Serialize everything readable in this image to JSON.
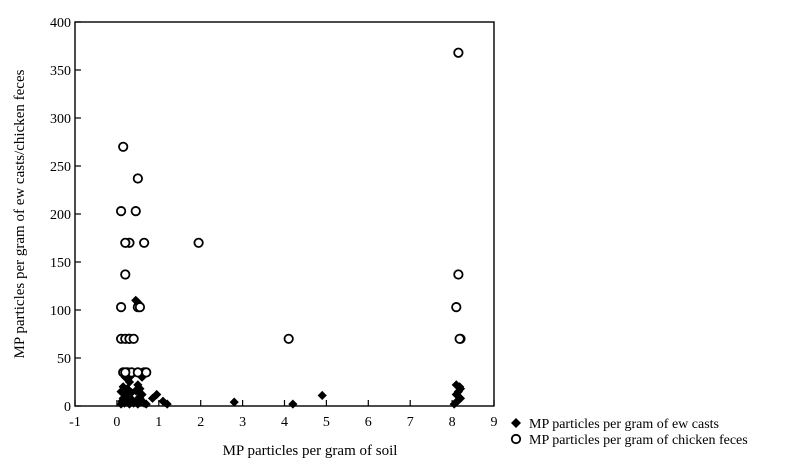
{
  "chart_data": {
    "type": "scatter",
    "title": "",
    "xlabel": "MP particles per gram of soil",
    "ylabel": "MP particles  per gram of ew casts/chicken feces",
    "xlim": [
      -1,
      9
    ],
    "ylim": [
      0,
      400
    ],
    "xticks": [
      -1,
      0,
      1,
      2,
      3,
      4,
      5,
      6,
      7,
      8,
      9
    ],
    "yticks": [
      0,
      50,
      100,
      150,
      200,
      250,
      300,
      350,
      400
    ],
    "xtick_labels": [
      "-1",
      "0",
      "1",
      "2",
      "3",
      "4",
      "5",
      "6",
      "7",
      "8",
      "9"
    ],
    "ytick_labels": [
      "0",
      "50",
      "100",
      "150",
      "200",
      "250",
      "300",
      "350",
      "400"
    ],
    "grid": false,
    "legend_position": "bottom-right outside",
    "series": [
      {
        "name": "MP particles per gram of ew casts",
        "marker": "filled-diamond",
        "color": "#000000",
        "x": [
          0.1,
          0.12,
          0.15,
          0.18,
          0.2,
          0.22,
          0.25,
          0.3,
          0.35,
          0.4,
          0.45,
          0.5,
          0.55,
          0.6,
          0.65,
          0.7,
          0.1,
          0.15,
          0.2,
          0.25,
          0.3,
          0.35,
          0.45,
          0.5,
          0.55,
          0.6,
          0.2,
          0.25,
          0.35,
          0.5,
          0.6,
          0.15,
          0.3,
          0.45,
          0.5,
          0.55,
          0.5,
          0.85,
          0.95,
          1.1,
          1.2,
          2.8,
          4.2,
          4.9,
          8.05,
          8.1,
          8.15,
          8.2,
          8.1,
          8.15,
          8.2,
          8.1,
          8.18
        ],
        "y": [
          2,
          5,
          8,
          3,
          6,
          10,
          4,
          2,
          7,
          3,
          5,
          2,
          8,
          4,
          3,
          2,
          15,
          20,
          12,
          18,
          25,
          14,
          16,
          22,
          10,
          12,
          30,
          35,
          32,
          35,
          30,
          33,
          34,
          110,
          108,
          18,
          15,
          8,
          12,
          5,
          2,
          4,
          2,
          11,
          2,
          4,
          6,
          8,
          12,
          15,
          18,
          22,
          20
        ]
      },
      {
        "name": "MP particles per gram of chicken feces",
        "marker": "open-circle",
        "color": "#000000",
        "x": [
          0.1,
          0.15,
          0.3,
          0.2,
          0.1,
          0.2,
          0.1,
          0.2,
          0.3,
          0.15,
          0.25,
          0.35,
          0.2,
          0.3,
          0.4,
          0.5,
          0.55,
          0.65,
          0.7,
          0.45,
          0.5,
          0.5,
          0.65,
          1.95,
          4.1,
          8.15,
          8.15,
          8.1,
          8.2,
          8.18
        ],
        "y": [
          203,
          270,
          170,
          170,
          103,
          137,
          70,
          70,
          70,
          35,
          35,
          35,
          35,
          70,
          70,
          103,
          103,
          35,
          35,
          203,
          237,
          35,
          170,
          170,
          70,
          368,
          137,
          103,
          70,
          70
        ]
      }
    ]
  }
}
